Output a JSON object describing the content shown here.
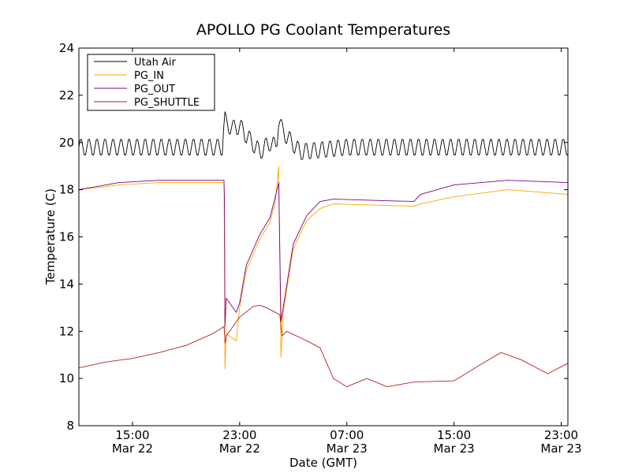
{
  "chart_data": {
    "type": "line",
    "title": "APOLLO PG Coolant Temperatures",
    "xlabel": "Date (GMT)",
    "ylabel": "Temperature (C)",
    "x_unit": "GMT time",
    "x_range": [
      "2022-03-22 11:00",
      "2022-03-23 23:30"
    ],
    "ylim": [
      8,
      24
    ],
    "yticks": [
      8,
      10,
      12,
      14,
      16,
      18,
      20,
      22,
      24
    ],
    "xticks": [
      {
        "t": "2022-03-22 15:00",
        "time": "15:00",
        "date": "Mar 22"
      },
      {
        "t": "2022-03-22 23:00",
        "time": "23:00",
        "date": "Mar 22"
      },
      {
        "t": "2022-03-23 07:00",
        "time": "07:00",
        "date": "Mar 23"
      },
      {
        "t": "2022-03-23 15:00",
        "time": "15:00",
        "date": "Mar 23"
      },
      {
        "t": "2022-03-23 23:00",
        "time": "23:00",
        "date": "Mar 23"
      }
    ],
    "legend_position": "upper-left",
    "grid": false,
    "series": [
      {
        "name": "Utah Air",
        "color": "#000000",
        "oscillation": {
          "amplitude": 0.75,
          "period_hours": 0.6
        },
        "points": [
          [
            "2022-03-22 11:00",
            19.8
          ],
          [
            "2022-03-22 15:00",
            19.8
          ],
          [
            "2022-03-22 20:00",
            19.8
          ],
          [
            "2022-03-22 21:45",
            19.8
          ],
          [
            "2022-03-22 21:50",
            21.1
          ],
          [
            "2022-03-22 22:00",
            20.8
          ],
          [
            "2022-03-22 22:30",
            20.6
          ],
          [
            "2022-03-22 23:00",
            20.7
          ],
          [
            "2022-03-22 23:30",
            20.3
          ],
          [
            "2022-03-23 00:30",
            19.6
          ],
          [
            "2022-03-23 01:15",
            20.0
          ],
          [
            "2022-03-23 01:45",
            19.8
          ],
          [
            "2022-03-23 01:55",
            21.1
          ],
          [
            "2022-03-23 02:10",
            20.5
          ],
          [
            "2022-03-23 03:30",
            19.6
          ],
          [
            "2022-03-23 07:00",
            19.8
          ],
          [
            "2022-03-23 13:00",
            19.8
          ],
          [
            "2022-03-23 23:30",
            19.8
          ]
        ]
      },
      {
        "name": "PG_IN",
        "color": "#ffa500",
        "points": [
          [
            "2022-03-22 11:00",
            18.0
          ],
          [
            "2022-03-22 14:00",
            18.2
          ],
          [
            "2022-03-22 17:00",
            18.3
          ],
          [
            "2022-03-22 21:50",
            18.3
          ],
          [
            "2022-03-22 21:52",
            15.5
          ],
          [
            "2022-03-22 21:54",
            10.4
          ],
          [
            "2022-03-22 22:00",
            11.9
          ],
          [
            "2022-03-22 22:45",
            11.6
          ],
          [
            "2022-03-22 23:00",
            13.0
          ],
          [
            "2022-03-22 23:30",
            14.6
          ],
          [
            "2022-03-23 00:30",
            15.9
          ],
          [
            "2022-03-23 01:15",
            16.6
          ],
          [
            "2022-03-23 01:40",
            17.5
          ],
          [
            "2022-03-23 01:55",
            19.0
          ],
          [
            "2022-03-23 02:05",
            10.9
          ],
          [
            "2022-03-23 02:15",
            12.8
          ],
          [
            "2022-03-23 03:00",
            15.5
          ],
          [
            "2022-03-23 04:00",
            16.7
          ],
          [
            "2022-03-23 05:00",
            17.2
          ],
          [
            "2022-03-23 06:00",
            17.4
          ],
          [
            "2022-03-23 12:00",
            17.3
          ],
          [
            "2022-03-23 12:30",
            17.4
          ],
          [
            "2022-03-23 15:00",
            17.7
          ],
          [
            "2022-03-23 19:00",
            18.0
          ],
          [
            "2022-03-23 23:30",
            17.8
          ]
        ]
      },
      {
        "name": "PG_OUT",
        "color": "#800080",
        "points": [
          [
            "2022-03-22 11:00",
            18.0
          ],
          [
            "2022-03-22 14:00",
            18.3
          ],
          [
            "2022-03-22 17:00",
            18.4
          ],
          [
            "2022-03-22 21:50",
            18.4
          ],
          [
            "2022-03-22 21:52",
            17.5
          ],
          [
            "2022-03-22 21:54",
            12.2
          ],
          [
            "2022-03-22 22:00",
            13.4
          ],
          [
            "2022-03-22 22:45",
            12.8
          ],
          [
            "2022-03-22 23:00",
            13.2
          ],
          [
            "2022-03-22 23:30",
            14.8
          ],
          [
            "2022-03-23 00:30",
            16.1
          ],
          [
            "2022-03-23 01:15",
            16.8
          ],
          [
            "2022-03-23 01:40",
            17.7
          ],
          [
            "2022-03-23 01:55",
            18.3
          ],
          [
            "2022-03-23 02:05",
            12.4
          ],
          [
            "2022-03-23 02:15",
            13.0
          ],
          [
            "2022-03-23 03:00",
            15.7
          ],
          [
            "2022-03-23 04:00",
            16.9
          ],
          [
            "2022-03-23 05:00",
            17.5
          ],
          [
            "2022-03-23 06:00",
            17.6
          ],
          [
            "2022-03-23 12:00",
            17.5
          ],
          [
            "2022-03-23 12:30",
            17.8
          ],
          [
            "2022-03-23 15:00",
            18.2
          ],
          [
            "2022-03-23 19:00",
            18.4
          ],
          [
            "2022-03-23 23:30",
            18.3
          ]
        ]
      },
      {
        "name": "PG_SHUTTLE",
        "color": "#b22222",
        "points": [
          [
            "2022-03-22 11:00",
            10.45
          ],
          [
            "2022-03-22 13:00",
            10.7
          ],
          [
            "2022-03-22 15:00",
            10.85
          ],
          [
            "2022-03-22 17:00",
            11.1
          ],
          [
            "2022-03-22 19:00",
            11.4
          ],
          [
            "2022-03-22 21:00",
            11.9
          ],
          [
            "2022-03-22 21:50",
            12.2
          ],
          [
            "2022-03-22 21:55",
            11.5
          ],
          [
            "2022-03-22 22:00",
            11.8
          ],
          [
            "2022-03-22 23:00",
            12.6
          ],
          [
            "2022-03-23 00:00",
            13.05
          ],
          [
            "2022-03-23 00:30",
            13.1
          ],
          [
            "2022-03-23 01:00",
            13.0
          ],
          [
            "2022-03-23 02:00",
            12.7
          ],
          [
            "2022-03-23 02:10",
            11.8
          ],
          [
            "2022-03-23 02:30",
            12.0
          ],
          [
            "2022-03-23 04:00",
            11.6
          ],
          [
            "2022-03-23 05:00",
            11.3
          ],
          [
            "2022-03-23 06:00",
            10.0
          ],
          [
            "2022-03-23 07:00",
            9.65
          ],
          [
            "2022-03-23 08:30",
            10.0
          ],
          [
            "2022-03-23 10:00",
            9.65
          ],
          [
            "2022-03-23 11:00",
            9.75
          ],
          [
            "2022-03-23 12:00",
            9.85
          ],
          [
            "2022-03-23 15:00",
            9.9
          ],
          [
            "2022-03-23 17:00",
            10.6
          ],
          [
            "2022-03-23 18:30",
            11.1
          ],
          [
            "2022-03-23 20:00",
            10.8
          ],
          [
            "2022-03-23 22:00",
            10.2
          ],
          [
            "2022-03-23 23:30",
            10.65
          ]
        ]
      }
    ]
  }
}
